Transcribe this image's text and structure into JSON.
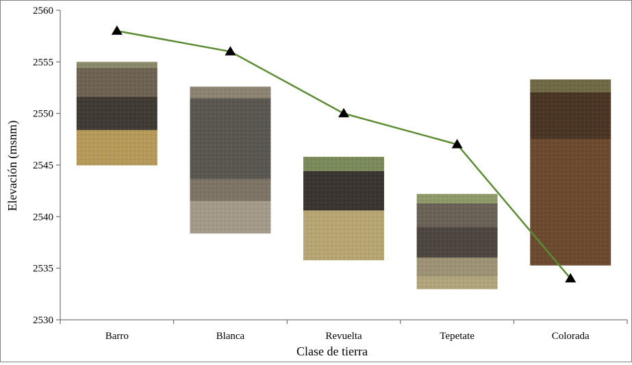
{
  "chart_data": {
    "type": "line",
    "title": "",
    "xlabel": "Clase de tierra",
    "ylabel": "Elevación (msnm)",
    "ylim": [
      2530,
      2560
    ],
    "yticks": [
      2530,
      2535,
      2540,
      2545,
      2550,
      2555,
      2560
    ],
    "categories": [
      "Barro",
      "Blanca",
      "Revuelta",
      "Tepetate",
      "Colorada"
    ],
    "series": [
      {
        "values": [
          2558,
          2556,
          2550,
          2547,
          2534
        ],
        "color": "#5b8c32",
        "marker": "triangle"
      }
    ],
    "grid": false,
    "legend": "none",
    "soil_photos": [
      {
        "category": "Barro",
        "top": 2555,
        "bottom": 2545,
        "layers": [
          [
            "#8a8a6a",
            0.06
          ],
          [
            "#6e6253",
            0.28
          ],
          [
            "#3f3a33",
            0.32
          ],
          [
            "#b59a5a",
            0.34
          ]
        ]
      },
      {
        "category": "Blanca",
        "top": 2552.6,
        "bottom": 2538.4,
        "layers": [
          [
            "#8c8373",
            0.08
          ],
          [
            "#5a5750",
            0.55
          ],
          [
            "#7d7466",
            0.15
          ],
          [
            "#a39a8a",
            0.22
          ]
        ]
      },
      {
        "category": "Revuelta",
        "top": 2545.8,
        "bottom": 2535.8,
        "layers": [
          [
            "#7a8a5a",
            0.14
          ],
          [
            "#3a3531",
            0.38
          ],
          [
            "#b8a574",
            0.48
          ]
        ]
      },
      {
        "category": "Tepetate",
        "top": 2542.2,
        "bottom": 2533,
        "layers": [
          [
            "#8e9a6a",
            0.1
          ],
          [
            "#6a6256",
            0.25
          ],
          [
            "#4d4640",
            0.32
          ],
          [
            "#9d9374",
            0.2
          ],
          [
            "#b1a57c",
            0.13
          ]
        ]
      },
      {
        "category": "Colorada",
        "top": 2553.3,
        "bottom": 2535.3,
        "layers": [
          [
            "#6f6a45",
            0.07
          ],
          [
            "#4a3525",
            0.25
          ],
          [
            "#6b4a30",
            0.68
          ]
        ]
      }
    ]
  }
}
